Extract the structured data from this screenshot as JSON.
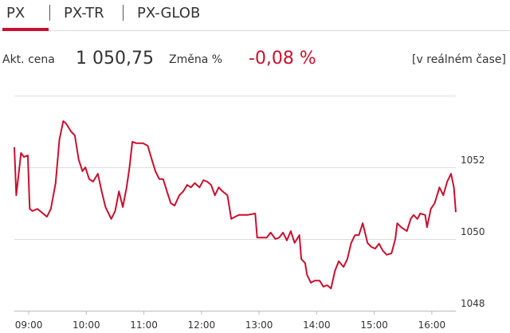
{
  "header": {
    "tabs": [
      "PX",
      "PX-TR",
      "PX-GLOB"
    ]
  },
  "quote": {
    "price_label": "Akt. cena",
    "price": "1 050,75",
    "change_label": "Změna %",
    "change": "-0,08 %",
    "note": "[v reálném čase]"
  },
  "chart_data": {
    "type": "line",
    "x": [
      525,
      527,
      532,
      535,
      539,
      541,
      544,
      549,
      555,
      559,
      563,
      568,
      572,
      576,
      579,
      584,
      588,
      592,
      596,
      599,
      603,
      607,
      612,
      616,
      620,
      626,
      630,
      634,
      638,
      642,
      645,
      648,
      652,
      659,
      664,
      667,
      672,
      676,
      680,
      684,
      688,
      692,
      697,
      701,
      705,
      709,
      713,
      718,
      722,
      726,
      730,
      734,
      738,
      742,
      747,
      751,
      755,
      759,
      768,
      776,
      778,
      788,
      792,
      797,
      801,
      805,
      809,
      813,
      817,
      822,
      824,
      828,
      830,
      834,
      838,
      843,
      847,
      851,
      855,
      859,
      863,
      868,
      872,
      876,
      880,
      884,
      888,
      893,
      897,
      901,
      905,
      909,
      913,
      918,
      922,
      924,
      928,
      934,
      938,
      941,
      945,
      948,
      953,
      955,
      959,
      963,
      968,
      972,
      976,
      980,
      983,
      985
    ],
    "series": [
      {
        "color": "#c8102e",
        "values": [
          1052.56,
          1051.22,
          1052.4,
          1052.29,
          1052.33,
          1050.84,
          1050.78,
          1050.84,
          1050.71,
          1050.62,
          1050.84,
          1051.56,
          1052.78,
          1053.29,
          1053.22,
          1053.0,
          1052.89,
          1052.22,
          1051.89,
          1052.0,
          1051.67,
          1051.6,
          1051.82,
          1051.33,
          1050.89,
          1050.56,
          1050.78,
          1051.33,
          1050.89,
          1051.44,
          1052.0,
          1052.71,
          1052.67,
          1052.67,
          1052.6,
          1052.33,
          1051.89,
          1051.67,
          1051.67,
          1051.33,
          1051.0,
          1050.93,
          1051.22,
          1051.33,
          1051.51,
          1051.44,
          1051.56,
          1051.44,
          1051.64,
          1051.6,
          1051.51,
          1051.22,
          1051.44,
          1051.33,
          1051.22,
          1050.56,
          1050.62,
          1050.67,
          1050.67,
          1050.71,
          1050.04,
          1050.04,
          1050.18,
          1050.0,
          1050.04,
          1050.18,
          1049.96,
          1050.22,
          1049.89,
          1050.11,
          1049.44,
          1049.33,
          1049.0,
          1048.78,
          1048.84,
          1048.84,
          1048.67,
          1048.71,
          1048.62,
          1049.11,
          1049.38,
          1049.22,
          1049.44,
          1049.89,
          1050.11,
          1050.11,
          1050.44,
          1049.89,
          1049.78,
          1049.73,
          1049.87,
          1049.67,
          1049.56,
          1049.6,
          1050.0,
          1050.44,
          1050.33,
          1050.22,
          1050.56,
          1050.67,
          1050.56,
          1050.71,
          1050.67,
          1050.33,
          1050.84,
          1051.0,
          1051.44,
          1051.22,
          1051.6,
          1051.82,
          1051.44,
          1050.75
        ]
      }
    ],
    "xlim": [
      525,
      985
    ],
    "xticks": [
      {
        "value": 540,
        "label": "09:00"
      },
      {
        "value": 600,
        "label": "10:00"
      },
      {
        "value": 660,
        "label": "11:00"
      },
      {
        "value": 720,
        "label": "12:00"
      },
      {
        "value": 780,
        "label": "13:00"
      },
      {
        "value": 840,
        "label": "14:00"
      },
      {
        "value": 900,
        "label": "15:00"
      },
      {
        "value": 960,
        "label": "16:00"
      }
    ],
    "ylim": [
      1048,
      1054
    ],
    "yticks": [
      1048,
      1050,
      1052
    ],
    "grid": true
  }
}
